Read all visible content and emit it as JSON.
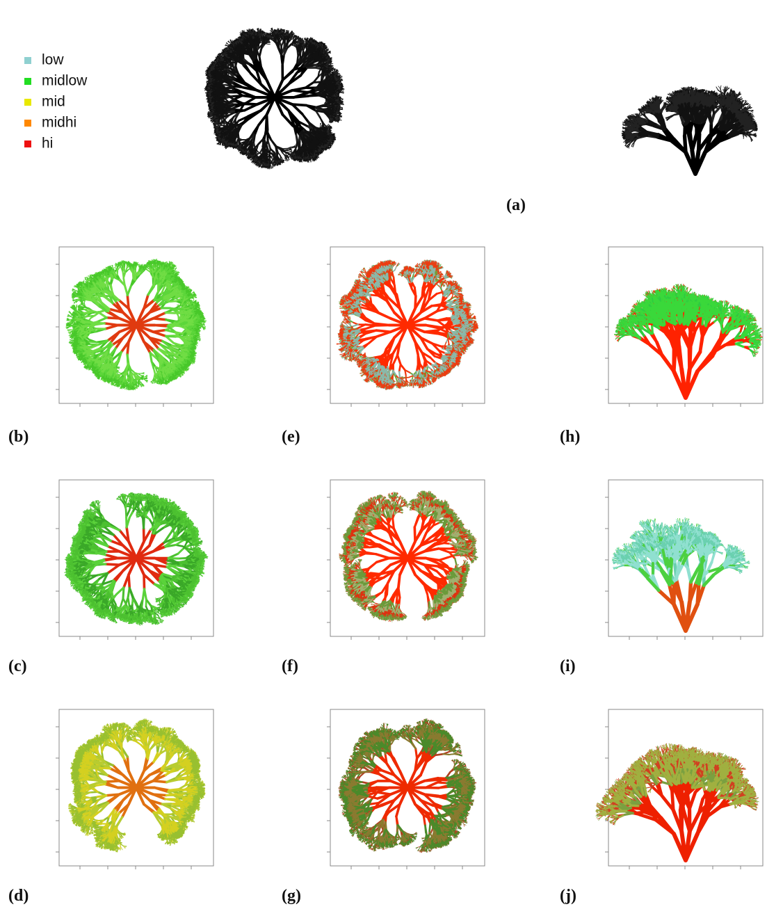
{
  "legend": {
    "items": [
      {
        "label": "low",
        "color": "#8fd0d0"
      },
      {
        "label": "midlow",
        "color": "#22dd22"
      },
      {
        "label": "mid",
        "color": "#e8e800"
      },
      {
        "label": "midhi",
        "color": "#ff8800"
      },
      {
        "label": "hi",
        "color": "#ee1111"
      }
    ]
  },
  "panels": {
    "a": "(a)",
    "b": "(b)",
    "c": "(c)",
    "d": "(d)",
    "e": "(e)",
    "f": "(f)",
    "g": "(g)",
    "h": "(h)",
    "i": "(i)",
    "j": "(j)"
  }
}
